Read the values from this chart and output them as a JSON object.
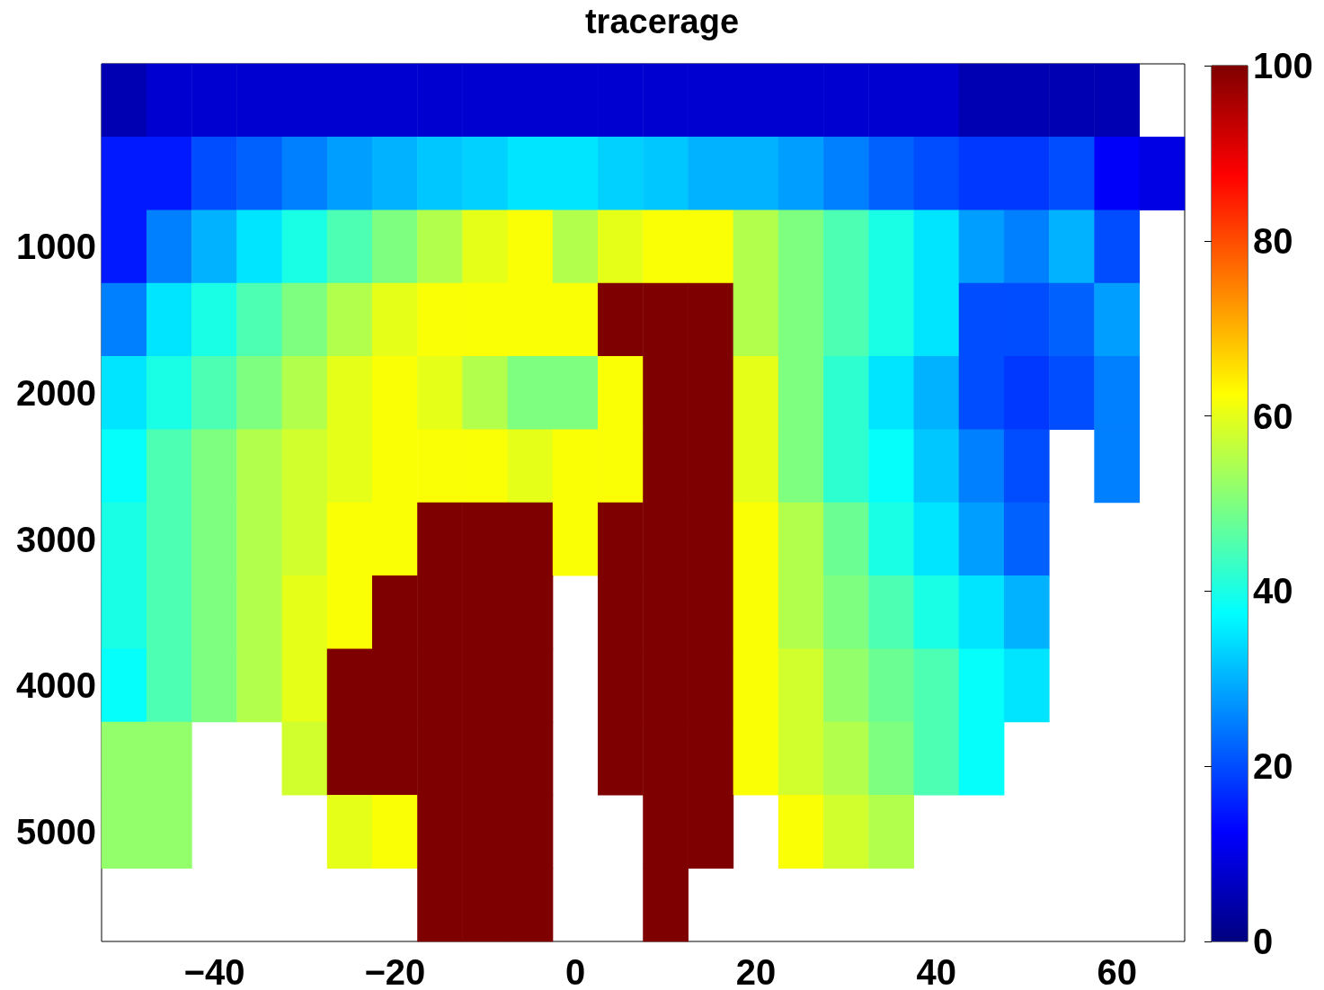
{
  "chart_data": {
    "type": "heatmap",
    "title": "tracerage",
    "categories": [
      null,
      null,
      "−40",
      null,
      null,
      null,
      "−20",
      null,
      null,
      null,
      "0",
      null,
      null,
      null,
      "20",
      null,
      null,
      null,
      "40",
      null,
      null,
      null,
      "60",
      null
    ],
    "y_categories": [
      null,
      null,
      "1000",
      null,
      "2000",
      null,
      "3000",
      null,
      "4000",
      null,
      "5000",
      null
    ],
    "cells": [
      [
        5,
        8,
        8,
        8,
        8,
        8,
        8,
        8,
        8,
        8,
        8,
        8,
        8,
        8,
        8,
        8,
        8,
        8,
        8,
        5,
        5,
        5,
        5,
        null
      ],
      [
        15,
        15,
        20,
        22,
        25,
        28,
        30,
        32,
        33,
        35,
        35,
        33,
        32,
        30,
        30,
        28,
        25,
        22,
        20,
        18,
        18,
        20,
        12,
        10
      ],
      [
        15,
        25,
        30,
        35,
        40,
        45,
        50,
        55,
        60,
        62,
        55,
        60,
        62,
        62,
        55,
        50,
        45,
        40,
        35,
        28,
        25,
        30,
        20,
        null
      ],
      [
        25,
        35,
        40,
        45,
        50,
        55,
        60,
        62,
        62,
        62,
        62,
        100,
        100,
        100,
        55,
        50,
        45,
        40,
        35,
        20,
        20,
        22,
        28,
        null
      ],
      [
        35,
        40,
        45,
        50,
        55,
        60,
        62,
        60,
        55,
        50,
        50,
        62,
        100,
        100,
        60,
        50,
        42,
        35,
        30,
        20,
        18,
        20,
        25,
        null
      ],
      [
        38,
        45,
        50,
        55,
        58,
        60,
        62,
        62,
        62,
        60,
        62,
        62,
        100,
        100,
        60,
        50,
        42,
        38,
        32,
        25,
        20,
        null,
        25,
        null
      ],
      [
        40,
        45,
        50,
        55,
        58,
        62,
        62,
        100,
        100,
        100,
        62,
        100,
        100,
        100,
        62,
        55,
        48,
        40,
        35,
        28,
        22,
        null,
        null,
        null
      ],
      [
        40,
        45,
        50,
        55,
        60,
        62,
        100,
        100,
        100,
        100,
        null,
        100,
        100,
        100,
        62,
        55,
        50,
        45,
        40,
        35,
        30,
        null,
        null,
        null
      ],
      [
        38,
        45,
        50,
        55,
        60,
        100,
        100,
        100,
        100,
        100,
        null,
        100,
        100,
        100,
        62,
        58,
        52,
        48,
        45,
        38,
        35,
        null,
        null,
        null
      ],
      [
        52,
        52,
        null,
        null,
        58,
        100,
        100,
        100,
        100,
        100,
        null,
        100,
        100,
        100,
        62,
        58,
        55,
        50,
        45,
        38,
        null,
        null,
        null,
        null
      ],
      [
        52,
        52,
        null,
        null,
        null,
        60,
        62,
        100,
        100,
        100,
        null,
        null,
        100,
        100,
        null,
        62,
        58,
        55,
        null,
        null,
        null,
        null,
        null,
        null
      ],
      [
        null,
        null,
        null,
        null,
        null,
        null,
        null,
        100,
        100,
        100,
        null,
        null,
        100,
        null,
        null,
        null,
        null,
        null,
        null,
        null,
        null,
        null,
        null,
        null
      ]
    ],
    "clim": [
      0,
      100
    ],
    "cticks": [
      0,
      20,
      40,
      60,
      80,
      100
    ]
  }
}
